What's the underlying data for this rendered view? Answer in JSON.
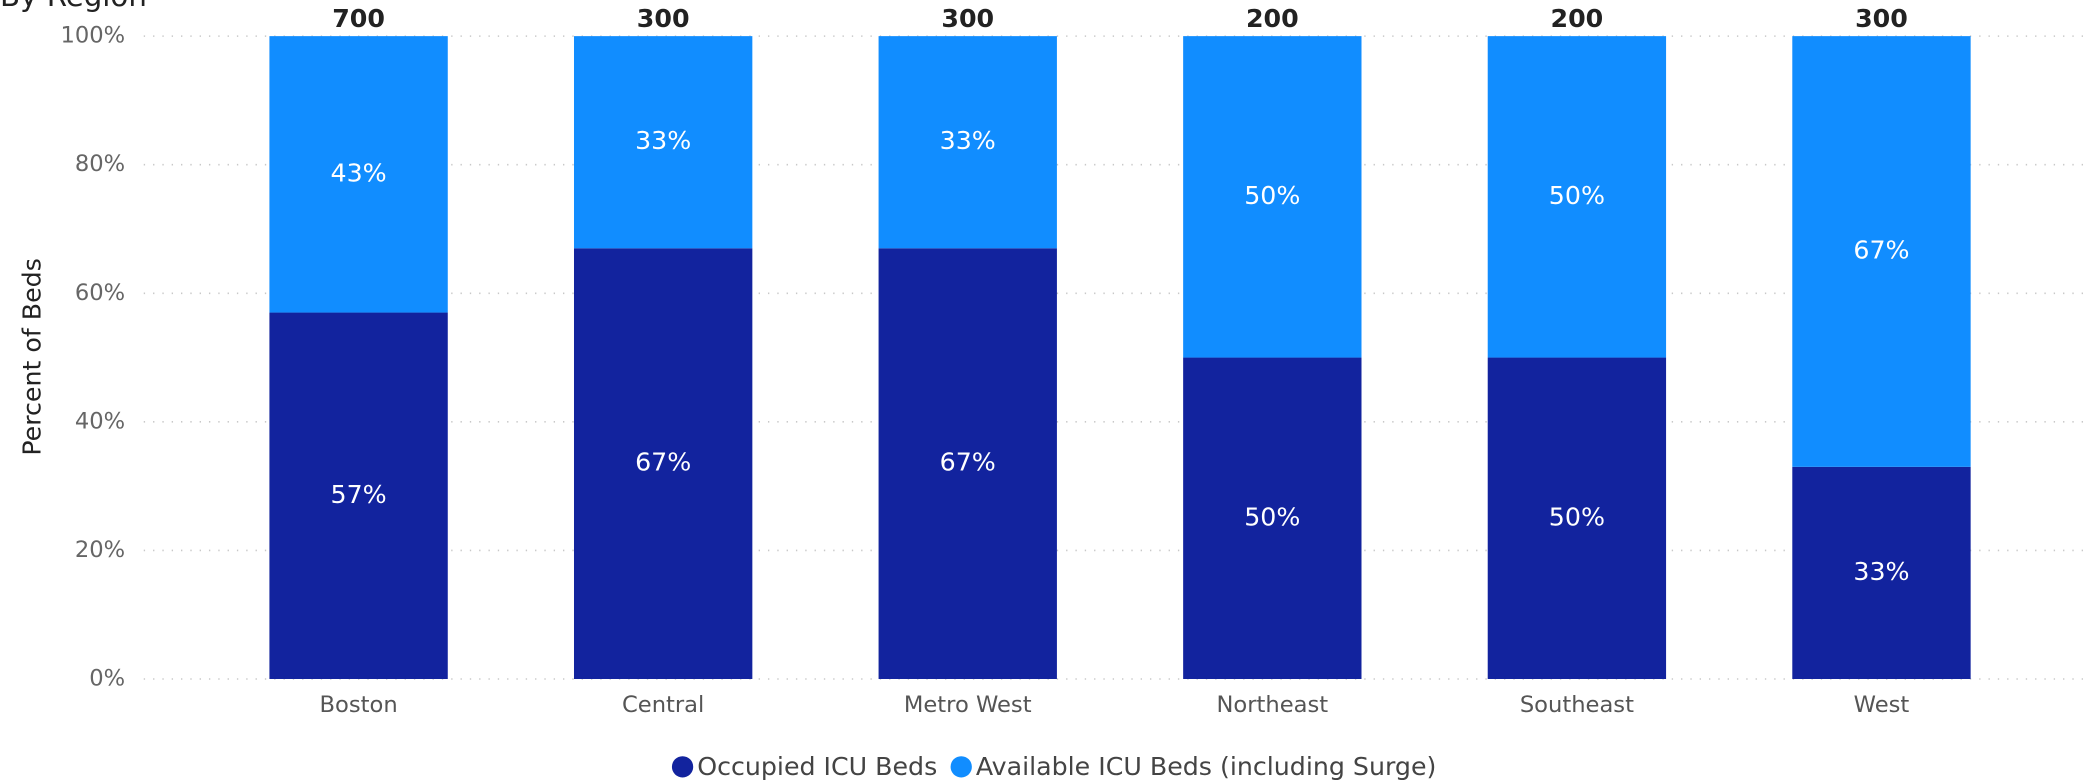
{
  "chart_data": {
    "type": "stacked_percent_bar",
    "subtitle": "By Region",
    "y_label": "Percent of Beds",
    "categories": [
      "Boston",
      "Central",
      "Metro West",
      "Northeast",
      "Southeast",
      "West"
    ],
    "totals": [
      700,
      300,
      300,
      200,
      200,
      300
    ],
    "series": [
      {
        "name": "Occupied ICU Beds",
        "color": "#12239e",
        "values": [
          57,
          67,
          67,
          50,
          50,
          33
        ],
        "value_labels": [
          "57%",
          "67%",
          "67%",
          "50%",
          "50%",
          "33%"
        ]
      },
      {
        "name": "Available ICU Beds (including Surge)",
        "color": "#118dff",
        "values": [
          43,
          33,
          33,
          50,
          50,
          67
        ],
        "value_labels": [
          "43%",
          "33%",
          "33%",
          "50%",
          "50%",
          "67%"
        ]
      }
    ],
    "ylim": [
      0,
      100
    ],
    "yticks": [
      {
        "value": 0,
        "label": "0%"
      },
      {
        "value": 20,
        "label": "20%"
      },
      {
        "value": 40,
        "label": "40%"
      },
      {
        "value": 60,
        "label": "60%"
      },
      {
        "value": 80,
        "label": "80%"
      },
      {
        "value": 100,
        "label": "100%"
      }
    ],
    "grid": true
  }
}
